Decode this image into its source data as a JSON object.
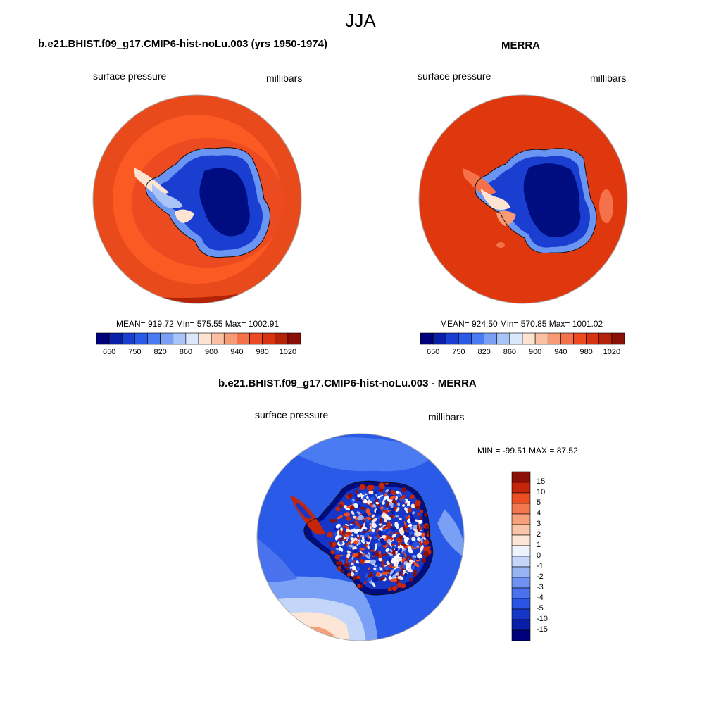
{
  "season": "JJA",
  "left_panel": {
    "title": "b.e21.BHIST.f09_g17.CMIP6-hist-noLu.003 (yrs 1950-1974)",
    "variable": "surface pressure",
    "units": "millibars",
    "stats": "MEAN= 919.72  Min= 575.55  Max= 1002.91"
  },
  "right_panel": {
    "title": "MERRA",
    "variable": "surface pressure",
    "units": "millibars",
    "stats": "MEAN= 924.50  Min= 570.85  Max= 1001.02"
  },
  "diff_panel": {
    "title": "b.e21.BHIST.f09_g17.CMIP6-hist-noLu.003 - MERRA",
    "variable": "surface pressure",
    "units": "millibars",
    "stats": "MIN = -99.51 MAX =  87.52"
  },
  "colors": {
    "abs_scale": [
      "#00007a",
      "#0a1fa8",
      "#1a3fd0",
      "#2a5ae8",
      "#4a7bf2",
      "#7aa0f5",
      "#a9c4f7",
      "#dbe8fb",
      "#fde3d2",
      "#f9c0a2",
      "#f79a76",
      "#f4714a",
      "#ec4a20",
      "#d6330e",
      "#b42308",
      "#8a0f06"
    ],
    "diff_scale": [
      "#00007a",
      "#0a1fa8",
      "#1636c8",
      "#2a55e4",
      "#4a72ee",
      "#6f92f2",
      "#98b4f5",
      "#c3d6f9",
      "#eef3fd",
      "#fde6d6",
      "#f9c5a9",
      "#f7a07c",
      "#f4784f",
      "#ec4e22",
      "#c5260a",
      "#8a0f06"
    ],
    "ocean_model": "#e84a1c",
    "ocean_model_outer": "#fb5a22",
    "ocean_merra": "#e0380e",
    "ice_deep": "#000d80",
    "ice_mid": "#1a3fd0",
    "ice_edge": "#6a95f2",
    "diff_ocean": "#2a5ae8",
    "diff_ocean_light": "#7aa0f5"
  },
  "chart_data": {
    "type": "heatmap",
    "panels": [
      {
        "name": "model",
        "title": "b.e21.BHIST.f09_g17.CMIP6-hist-noLu.003 (yrs 1950-1974)",
        "mean": 919.72,
        "min": 575.55,
        "max": 1002.91,
        "colorbar_ticks": [
          "650",
          "750",
          "820",
          "860",
          "900",
          "940",
          "980",
          "1020"
        ]
      },
      {
        "name": "merra",
        "title": "MERRA",
        "mean": 924.5,
        "min": 570.85,
        "max": 1001.02,
        "colorbar_ticks": [
          "650",
          "750",
          "820",
          "860",
          "900",
          "940",
          "980",
          "1020"
        ]
      },
      {
        "name": "difference",
        "title": "b.e21.BHIST.f09_g17.CMIP6-hist-noLu.003 - MERRA",
        "min": -99.51,
        "max": 87.52,
        "colorbar_ticks": [
          "15",
          "10",
          "5",
          "4",
          "3",
          "2",
          "1",
          "0",
          "-1",
          "-2",
          "-3",
          "-4",
          "-5",
          "-10",
          "-15"
        ]
      }
    ]
  }
}
